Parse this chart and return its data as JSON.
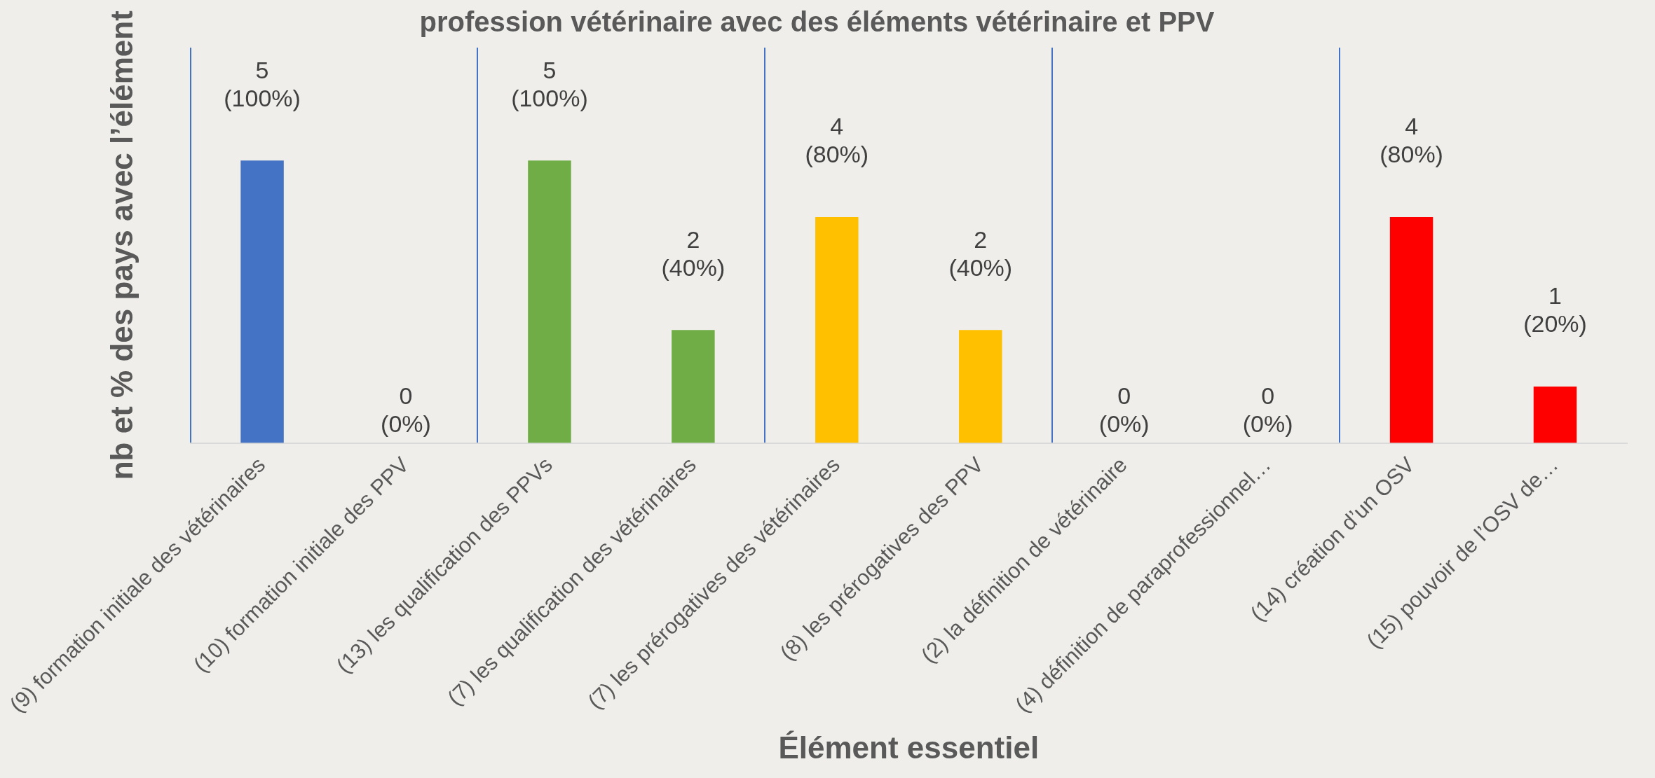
{
  "chart_data": {
    "type": "bar",
    "title": "profession vétérinaire avec des éléments vétérinaire et PPV",
    "xlabel": "Élément essentiel",
    "ylabel": "nb et % des pays avec l’élément",
    "categories": [
      "(9) formation initiale des vétérinaires",
      "(10) formation initiale des PPV",
      "(13) les qualification des PPVs",
      "(7) les qualification des vétérinaires",
      "(7) les prérogatives des vétérinaires",
      "(8) les prérogatives des PPV",
      "(2) la définition de vétérinaire",
      "(4) définition de paraprofessionnel…",
      "(14) création d’un OSV",
      "(15) pouvoir de l’OSV de…"
    ],
    "values": [
      5,
      0,
      5,
      2,
      4,
      2,
      0,
      0,
      4,
      1
    ],
    "colors": [
      "#4472c4",
      "#4472c4",
      "#70ad47",
      "#70ad47",
      "#ffc000",
      "#ffc000",
      "#a5a5a5",
      "#a5a5a5",
      "#ff0000",
      "#ff0000"
    ],
    "value_labels": [
      "5\n(100%)",
      "0\n(0%)",
      "5\n(100%)",
      "2\n(40%)",
      "4\n(80%)",
      "2\n(40%)",
      "0\n(0%)",
      "0\n(0%)",
      "4\n(80%)",
      "1\n(20%)"
    ],
    "tick_labels": "x",
    "grid": "x",
    "legend": false
  }
}
